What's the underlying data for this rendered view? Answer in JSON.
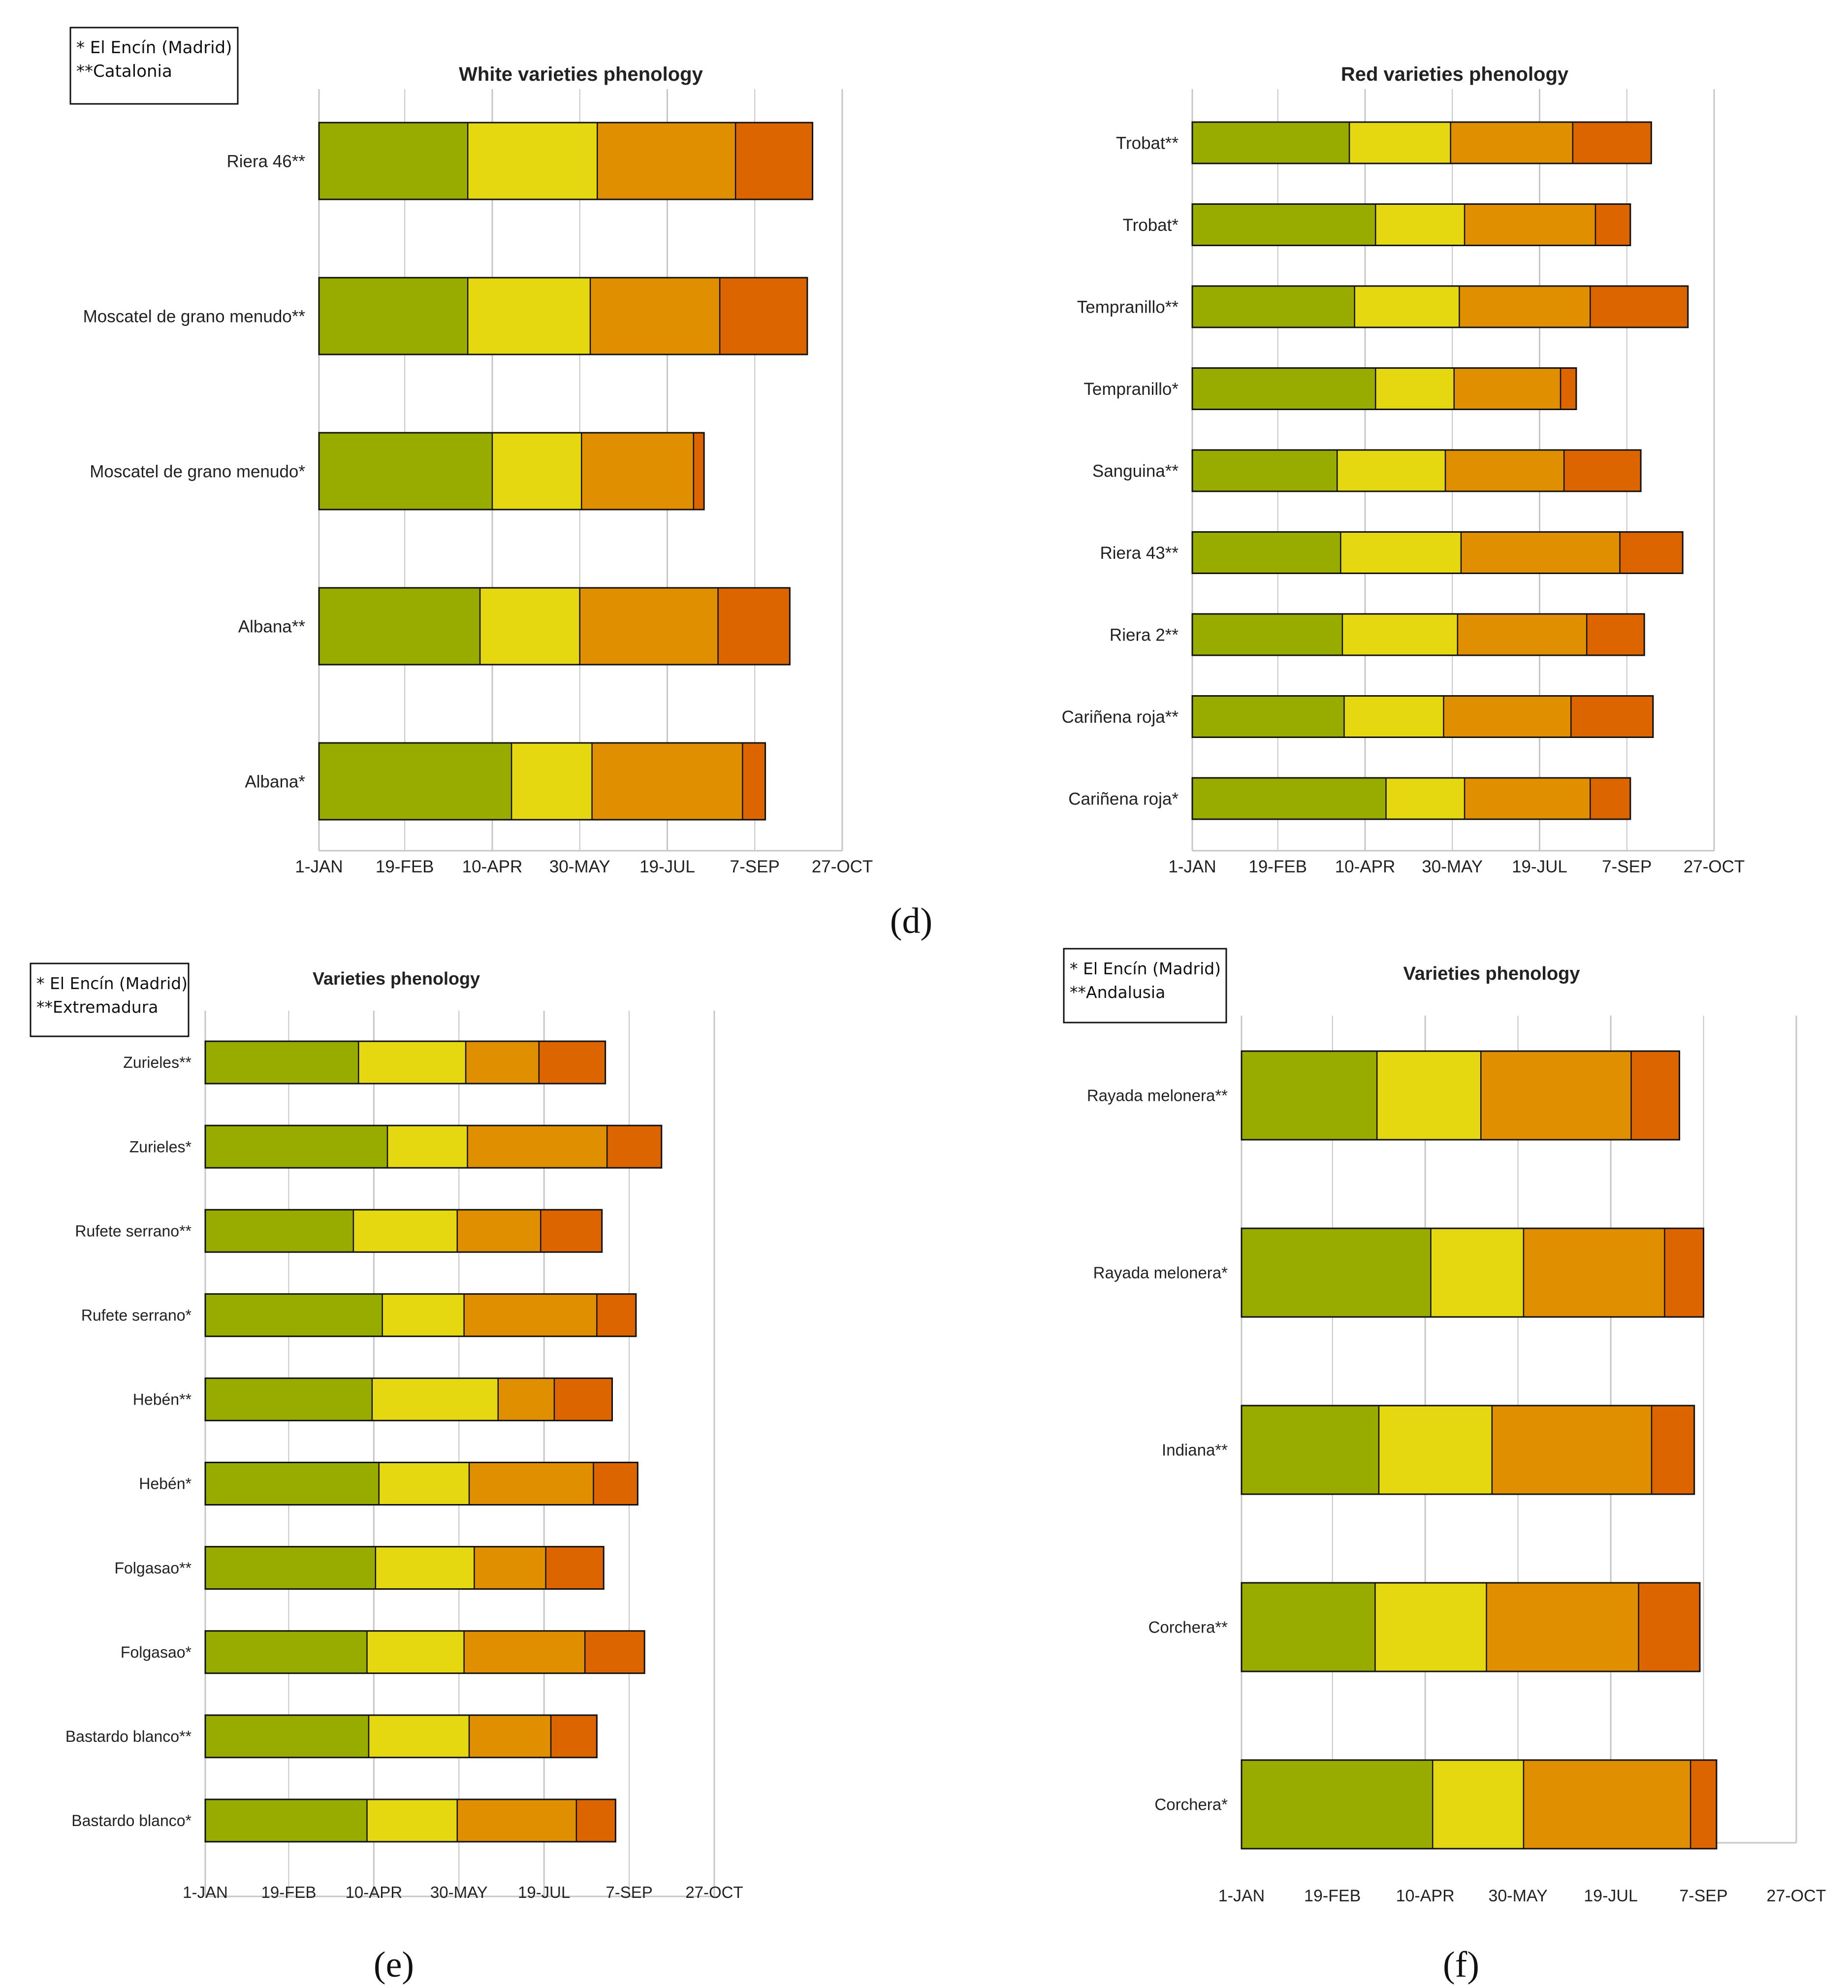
{
  "figure": {
    "panel_labels": [
      "(d)",
      "(e)",
      "(f)"
    ],
    "stage_colors": [
      "#98ac00",
      "#e5d710",
      "#e08f00",
      "#dd6500"
    ],
    "grid_color": "#c6c6c6",
    "bar_edge_color": "#111111"
  },
  "chart_data": [
    {
      "id": "white",
      "type": "bar",
      "orientation": "horizontal-stacked",
      "title": "White varieties phenology",
      "legend": [
        "* El Encín (Madrid)",
        "**Catalonia"
      ],
      "xlabel": "",
      "ylabel": "",
      "x_unit": "day of year",
      "x_range": [
        1,
        300
      ],
      "x_ticks": [
        1,
        50,
        100,
        150,
        200,
        250,
        300
      ],
      "x_tick_labels": [
        "1-JAN",
        "19-FEB",
        "10-APR",
        "30-MAY",
        "19-JUL",
        "7-SEP",
        "27-OCT"
      ],
      "categories": [
        "Riera 46**",
        "Moscatel de grano menudo**",
        "Moscatel de grano menudo*",
        "Albana**",
        "Albana*"
      ],
      "series_boundaries": [
        [
          1,
          86,
          160,
          239,
          283
        ],
        [
          1,
          86,
          156,
          230,
          280
        ],
        [
          1,
          100,
          151,
          215,
          221
        ],
        [
          1,
          93,
          150,
          229,
          270
        ],
        [
          1,
          111,
          157,
          243,
          256
        ]
      ]
    },
    {
      "id": "red",
      "type": "bar",
      "orientation": "horizontal-stacked",
      "title": "Red varieties phenology",
      "legend": [],
      "xlabel": "",
      "ylabel": "",
      "x_unit": "day of year",
      "x_range": [
        1,
        300
      ],
      "x_ticks": [
        1,
        50,
        100,
        150,
        200,
        250,
        300
      ],
      "x_tick_labels": [
        "1-JAN",
        "19-FEB",
        "10-APR",
        "30-MAY",
        "19-JUL",
        "7-SEP",
        "27-OCT"
      ],
      "categories": [
        "Trobat**",
        "Trobat*",
        "Tempranillo**",
        "Tempranillo*",
        "Sanguina**",
        "Riera 43**",
        "Riera 2**",
        "Cariñena roja**",
        "Cariñena roja*"
      ],
      "series_boundaries": [
        [
          1,
          91,
          149,
          219,
          264
        ],
        [
          1,
          106,
          157,
          232,
          252
        ],
        [
          1,
          94,
          154,
          229,
          285
        ],
        [
          1,
          106,
          151,
          212,
          221
        ],
        [
          1,
          84,
          146,
          214,
          258
        ],
        [
          1,
          86,
          155,
          246,
          282
        ],
        [
          1,
          87,
          153,
          227,
          260
        ],
        [
          1,
          88,
          145,
          218,
          265
        ],
        [
          1,
          112,
          157,
          229,
          252
        ]
      ]
    },
    {
      "id": "varieties-e",
      "type": "bar",
      "orientation": "horizontal-stacked",
      "title": "Varieties phenology",
      "legend": [
        "* El Encín (Madrid)",
        "**Extremadura"
      ],
      "xlabel": "",
      "ylabel": "",
      "x_unit": "day of year",
      "x_range": [
        1,
        300
      ],
      "x_ticks": [
        1,
        50,
        100,
        150,
        200,
        250,
        300
      ],
      "x_tick_labels": [
        "1-JAN",
        "19-FEB",
        "10-APR",
        "30-MAY",
        "19-JUL",
        "7-SEP",
        "27-OCT"
      ],
      "categories": [
        "Zurieles**",
        "Zurieles*",
        "Rufete serrano**",
        "Rufete serrano*",
        "Hebén**",
        "Hebén*",
        "Folgasao**",
        "Folgasao*",
        "Bastardo blanco**",
        "Bastardo blanco*"
      ],
      "series_boundaries": [
        [
          1,
          91,
          154,
          197,
          236
        ],
        [
          1,
          108,
          155,
          237,
          269
        ],
        [
          1,
          88,
          149,
          198,
          234
        ],
        [
          1,
          105,
          153,
          231,
          254
        ],
        [
          1,
          99,
          173,
          206,
          240
        ],
        [
          1,
          103,
          156,
          229,
          255
        ],
        [
          1,
          101,
          159,
          201,
          235
        ],
        [
          1,
          96,
          153,
          224,
          259
        ],
        [
          1,
          97,
          156,
          204,
          231
        ],
        [
          1,
          96,
          149,
          219,
          242
        ]
      ]
    },
    {
      "id": "varieties-f",
      "type": "bar",
      "orientation": "horizontal-stacked",
      "title": "Varieties phenology",
      "legend": [
        "* El Encín (Madrid)",
        "**Andalusia"
      ],
      "xlabel": "",
      "ylabel": "",
      "x_unit": "day of year",
      "x_range": [
        1,
        300
      ],
      "x_ticks": [
        1,
        50,
        100,
        150,
        200,
        250,
        300
      ],
      "x_tick_labels": [
        "1-JAN",
        "19-FEB",
        "10-APR",
        "30-MAY",
        "19-JUL",
        "7-SEP",
        "27-OCT"
      ],
      "categories": [
        "Rayada melonera**",
        "Rayada melonera*",
        "Indiana**",
        "Corchera**",
        "Corchera*"
      ],
      "series_boundaries": [
        [
          1,
          74,
          130,
          211,
          237
        ],
        [
          1,
          103,
          153,
          229,
          250
        ],
        [
          1,
          75,
          136,
          222,
          245
        ],
        [
          1,
          73,
          133,
          215,
          248
        ],
        [
          1,
          104,
          153,
          243,
          257
        ]
      ]
    }
  ]
}
